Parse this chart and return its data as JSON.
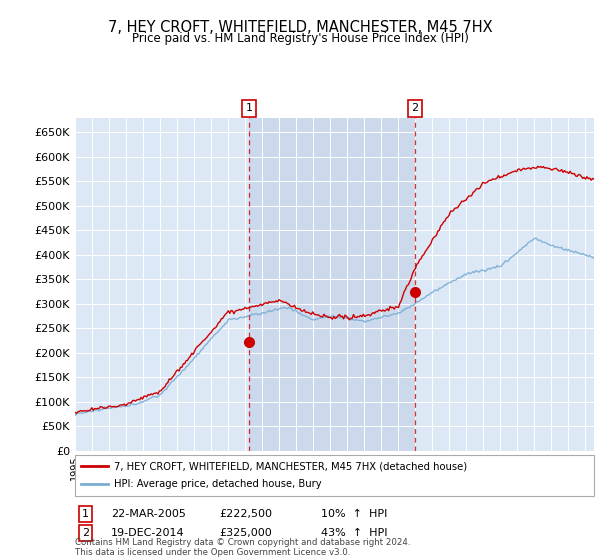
{
  "title": "7, HEY CROFT, WHITEFIELD, MANCHESTER, M45 7HX",
  "subtitle": "Price paid vs. HM Land Registry's House Price Index (HPI)",
  "ylabel_ticks": [
    "£0",
    "£50K",
    "£100K",
    "£150K",
    "£200K",
    "£250K",
    "£300K",
    "£350K",
    "£400K",
    "£450K",
    "£500K",
    "£550K",
    "£600K",
    "£650K"
  ],
  "ytick_values": [
    0,
    50000,
    100000,
    150000,
    200000,
    250000,
    300000,
    350000,
    400000,
    450000,
    500000,
    550000,
    600000,
    650000
  ],
  "ylim": [
    0,
    680000
  ],
  "sale1_date_num": 2005.22,
  "sale1_price": 222500,
  "sale1_label": "1",
  "sale1_text": "22-MAR-2005",
  "sale1_amount": "£222,500",
  "sale1_hpi": "10%  ↑  HPI",
  "sale2_date_num": 2014.96,
  "sale2_price": 325000,
  "sale2_label": "2",
  "sale2_text": "19-DEC-2014",
  "sale2_amount": "£325,000",
  "sale2_hpi": "43%  ↑  HPI",
  "hpi_line_color": "#7aadd4",
  "price_line_color": "#cc0000",
  "sale_dot_color": "#cc0000",
  "chart_bg_color": "#dce8f5",
  "highlight_bg_color": "#ccd9ec",
  "grid_color": "#b8c8d8",
  "white_grid_color": "#ffffff",
  "legend_label_price": "7, HEY CROFT, WHITEFIELD, MANCHESTER, M45 7HX (detached house)",
  "legend_label_hpi": "HPI: Average price, detached house, Bury",
  "footer": "Contains HM Land Registry data © Crown copyright and database right 2024.\nThis data is licensed under the Open Government Licence v3.0.",
  "xmin": 1995.0,
  "xmax": 2025.5
}
